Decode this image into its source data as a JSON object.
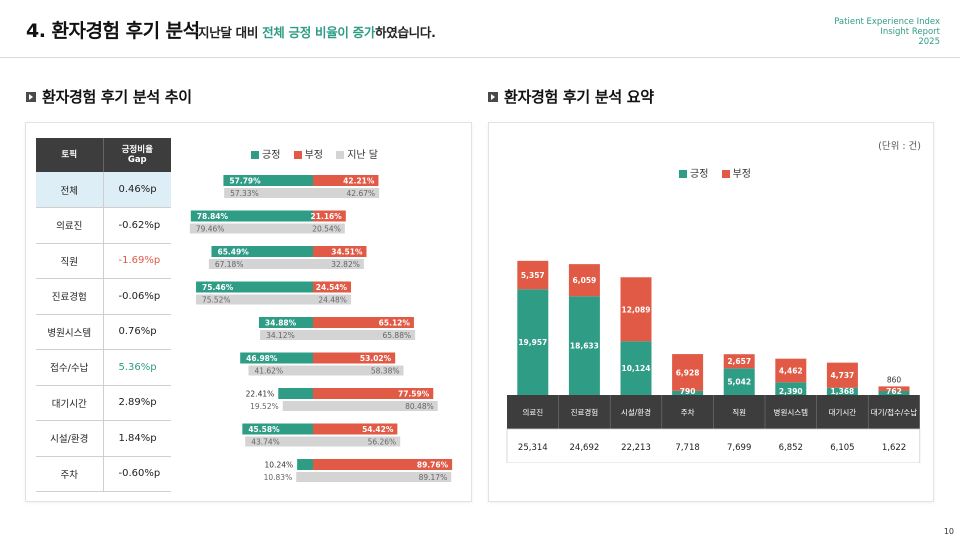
{
  "header": {
    "title": "4. 환자경험 후기 분석",
    "subtitle_pre": "지난달 대비 ",
    "subtitle_highlight": "전체 긍정 비율이 증가",
    "subtitle_post": "하였습니다.",
    "brand_line1": "Patient Experience Index",
    "brand_line2": "Insight Report",
    "brand_line3": "2025"
  },
  "left_section": {
    "title": "환자경험 후기 분석 추이"
  },
  "right_section": {
    "title": "환자경험 후기 분석 요약",
    "unit": "(단위 : 건)"
  },
  "colors": {
    "positive": "#2f9c86",
    "negative": "#e05a46",
    "previous": "#d4d4d4",
    "header_dark": "#3d3d3d"
  },
  "gap_table": {
    "col_topic": "토픽",
    "col_gap": "긍정비율 Gap",
    "rows": [
      {
        "topic": "전체",
        "gap": "0.46%p"
      },
      {
        "topic": "의료진",
        "gap": "-0.62%p"
      },
      {
        "topic": "직원",
        "gap": "-1.69%p"
      },
      {
        "topic": "진료경험",
        "gap": "-0.06%p"
      },
      {
        "topic": "병원시스템",
        "gap": "0.76%p"
      },
      {
        "topic": "접수/수납",
        "gap": "5.36%p"
      },
      {
        "topic": "대기시간",
        "gap": "2.89%p"
      },
      {
        "topic": "시설/환경",
        "gap": "1.84%p"
      },
      {
        "topic": "주차",
        "gap": "-0.60%p"
      }
    ]
  },
  "trend_legend": {
    "positive": "긍정",
    "negative": "부정",
    "previous": "지난 달"
  },
  "summary_legend": {
    "positive": "긍정",
    "negative": "부정"
  },
  "chart_data": [
    {
      "type": "bar",
      "orientation": "horizontal-diverging",
      "categories": [
        "전체",
        "의료진",
        "직원",
        "진료경험",
        "병원시스템",
        "접수/수납",
        "대기시간",
        "시설/환경",
        "주차"
      ],
      "series": [
        {
          "name": "긍정",
          "values": [
            57.79,
            78.84,
            65.49,
            75.46,
            34.88,
            46.98,
            22.41,
            45.58,
            10.24
          ],
          "labels": [
            "57.79%",
            "78.84%",
            "65.49%",
            "75.46%",
            "34.88%",
            "46.98%",
            "22.41%",
            "45.58%",
            "10.24%"
          ]
        },
        {
          "name": "부정",
          "values": [
            42.21,
            21.16,
            34.51,
            24.54,
            65.12,
            53.02,
            77.59,
            54.42,
            89.76
          ],
          "labels": [
            "42.21%",
            "21.16%",
            "34.51%",
            "24.54%",
            "65.12%",
            "53.02%",
            "77.59%",
            "54.42%",
            "89.76%"
          ]
        },
        {
          "name": "지난 달 긍정",
          "values": [
            57.33,
            79.46,
            67.18,
            75.52,
            34.12,
            41.62,
            19.52,
            43.74,
            10.83
          ],
          "labels": [
            "57.33%",
            "79.46%",
            "67.18%",
            "75.52%",
            "34.12%",
            "41.62%",
            "19.52%",
            "43.74%",
            "10.83%"
          ]
        },
        {
          "name": "지난 달 부정",
          "values": [
            42.67,
            20.54,
            32.82,
            24.48,
            65.88,
            58.38,
            80.48,
            56.26,
            89.17
          ],
          "labels": [
            "42.67%",
            "20.54%",
            "32.82%",
            "24.48%",
            "65.88%",
            "58.38%",
            "80.48%",
            "56.26%",
            "89.17%"
          ]
        }
      ]
    },
    {
      "type": "bar",
      "stacked": true,
      "categories": [
        "의료진",
        "진료경험",
        "시설/환경",
        "주차",
        "직원",
        "병원시스템",
        "대기시간",
        "대기/접수/수납"
      ],
      "series": [
        {
          "name": "긍정",
          "values": [
            19957,
            18633,
            10124,
            790,
            5042,
            2390,
            1368,
            762
          ],
          "labels": [
            "19,957",
            "18,633",
            "10,124",
            "790",
            "5,042",
            "2,390",
            "1,368",
            "762"
          ]
        },
        {
          "name": "부정",
          "values": [
            5357,
            6059,
            12089,
            6928,
            2657,
            4462,
            4737,
            860
          ],
          "labels": [
            "5,357",
            "6,059",
            "12,089",
            "6,928",
            "2,657",
            "4,462",
            "4,737",
            "860"
          ]
        }
      ],
      "totals": [
        "25,314",
        "24,692",
        "22,213",
        "7,718",
        "7,699",
        "6,852",
        "6,105",
        "1,622"
      ]
    }
  ],
  "page_number": "10"
}
